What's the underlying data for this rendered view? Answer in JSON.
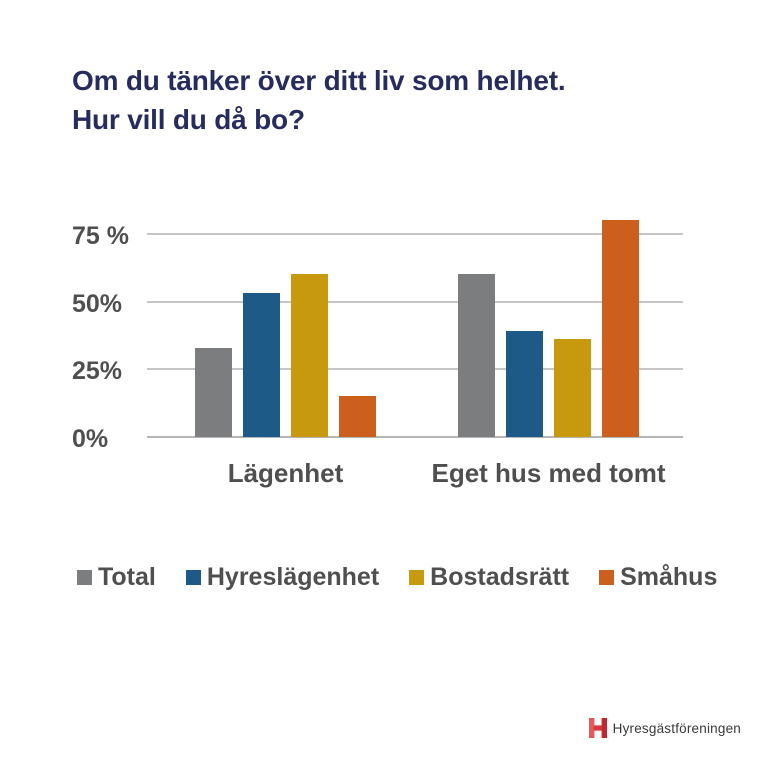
{
  "title": {
    "line1": "Om du tänker över ditt liv som helhet.",
    "line2": "Hur vill du då bo?"
  },
  "chart_data": {
    "type": "bar",
    "title": "Om du tänker över ditt liv som helhet. Hur vill du då bo?",
    "categories": [
      "Lägenhet",
      "Eget hus med tomt"
    ],
    "series": [
      {
        "name": "Total",
        "color": "#7c7d7f",
        "values": [
          33,
          60
        ]
      },
      {
        "name": "Hyreslägenhet",
        "color": "#1e5a88",
        "values": [
          53,
          39
        ]
      },
      {
        "name": "Bostadsrätt",
        "color": "#c7990f",
        "values": [
          60,
          36
        ]
      },
      {
        "name": "Småhus",
        "color": "#cc5e1e",
        "values": [
          15,
          80
        ]
      }
    ],
    "y_ticks": [
      {
        "label": "0%",
        "value": 0
      },
      {
        "label": "25%",
        "value": 25
      },
      {
        "label": "50%",
        "value": 50
      },
      {
        "label": "75 %",
        "value": 75
      }
    ],
    "unit": "%",
    "ylim": [
      0,
      83.8
    ],
    "grid": true,
    "legend_position": "bottom"
  },
  "footer": {
    "logo_text": "Hyresgästföreningen",
    "logo_colors": {
      "left": "#e9585e",
      "bar": "#d7373f",
      "right": "#c2262e"
    }
  },
  "colors": {
    "background": "#ffffff",
    "title_text": "#272c5e",
    "chart_text": "#4f4f4f",
    "gridline": "#c6c6c6",
    "axis_line": "#b5b5b5"
  }
}
